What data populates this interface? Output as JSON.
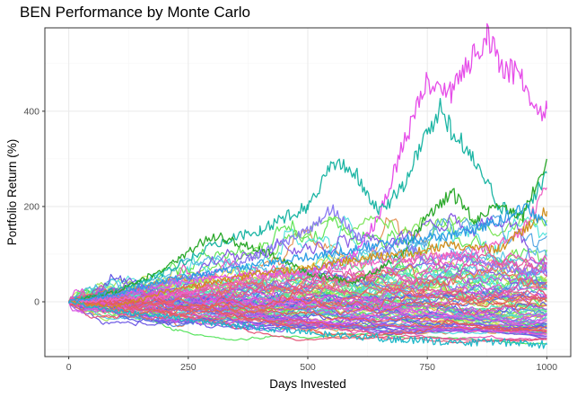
{
  "chart_data": {
    "type": "line",
    "title": "BEN Performance by Monte Carlo",
    "xlabel": "Days Invested",
    "ylabel": "Portfolio Return (%)",
    "xlim": [
      -50,
      1050
    ],
    "ylim": [
      -115,
      575
    ],
    "x_ticks": [
      0,
      250,
      500,
      750,
      1000
    ],
    "x_tick_labels": [
      "0",
      "250",
      "500",
      "750",
      "1000"
    ],
    "y_ticks": [
      0,
      200,
      400
    ],
    "y_tick_labels": [
      "0",
      "200",
      "400"
    ],
    "grid": true,
    "legend": "none",
    "n_simulations": 100,
    "days": 1000,
    "highlighted_series": [
      {
        "color": "#E64EE9",
        "points": [
          [
            0,
            0
          ],
          [
            100,
            15
          ],
          [
            200,
            35
          ],
          [
            300,
            50
          ],
          [
            400,
            60
          ],
          [
            500,
            60
          ],
          [
            600,
            100
          ],
          [
            650,
            180
          ],
          [
            700,
            330
          ],
          [
            750,
            460
          ],
          [
            800,
            440
          ],
          [
            850,
            520
          ],
          [
            875,
            560
          ],
          [
            900,
            500
          ],
          [
            950,
            470
          ],
          [
            975,
            400
          ],
          [
            1000,
            405
          ]
        ]
      },
      {
        "color": "#1CB5A4",
        "points": [
          [
            0,
            0
          ],
          [
            100,
            25
          ],
          [
            200,
            60
          ],
          [
            300,
            120
          ],
          [
            400,
            150
          ],
          [
            500,
            200
          ],
          [
            560,
            300
          ],
          [
            600,
            270
          ],
          [
            650,
            190
          ],
          [
            700,
            240
          ],
          [
            750,
            360
          ],
          [
            780,
            410
          ],
          [
            800,
            360
          ],
          [
            850,
            300
          ],
          [
            900,
            200
          ],
          [
            950,
            180
          ],
          [
            1000,
            270
          ]
        ]
      },
      {
        "color": "#2BA82B",
        "points": [
          [
            0,
            0
          ],
          [
            100,
            20
          ],
          [
            200,
            70
          ],
          [
            300,
            140
          ],
          [
            400,
            110
          ],
          [
            500,
            60
          ],
          [
            600,
            40
          ],
          [
            700,
            100
          ],
          [
            750,
            180
          ],
          [
            800,
            230
          ],
          [
            850,
            170
          ],
          [
            900,
            210
          ],
          [
            950,
            180
          ],
          [
            1000,
            300
          ]
        ]
      },
      {
        "color": "#8A7BF2",
        "points": [
          [
            0,
            0
          ],
          [
            100,
            10
          ],
          [
            200,
            40
          ],
          [
            300,
            60
          ],
          [
            400,
            100
          ],
          [
            500,
            150
          ],
          [
            550,
            200
          ],
          [
            600,
            140
          ],
          [
            650,
            100
          ],
          [
            700,
            130
          ],
          [
            750,
            80
          ],
          [
            800,
            100
          ],
          [
            900,
            70
          ],
          [
            1000,
            60
          ]
        ]
      },
      {
        "color": "#F066C6",
        "points": [
          [
            0,
            0
          ],
          [
            100,
            5
          ],
          [
            200,
            10
          ],
          [
            300,
            30
          ],
          [
            400,
            50
          ],
          [
            500,
            60
          ],
          [
            600,
            80
          ],
          [
            700,
            90
          ],
          [
            800,
            100
          ],
          [
            900,
            120
          ],
          [
            950,
            150
          ],
          [
            1000,
            240
          ]
        ]
      },
      {
        "color": "#D08F1F",
        "points": [
          [
            0,
            0
          ],
          [
            100,
            -10
          ],
          [
            200,
            20
          ],
          [
            300,
            40
          ],
          [
            400,
            60
          ],
          [
            500,
            70
          ],
          [
            600,
            90
          ],
          [
            700,
            100
          ],
          [
            800,
            120
          ],
          [
            900,
            110
          ],
          [
            1000,
            190
          ]
        ]
      },
      {
        "color": "#2C9DE5",
        "points": [
          [
            0,
            0
          ],
          [
            100,
            15
          ],
          [
            200,
            45
          ],
          [
            300,
            60
          ],
          [
            400,
            80
          ],
          [
            500,
            95
          ],
          [
            600,
            110
          ],
          [
            700,
            130
          ],
          [
            800,
            140
          ],
          [
            900,
            170
          ],
          [
            950,
            200
          ],
          [
            1000,
            160
          ]
        ]
      },
      {
        "color": "#1FB8C9",
        "points": [
          [
            0,
            0
          ],
          [
            100,
            -20
          ],
          [
            200,
            -30
          ],
          [
            300,
            -45
          ],
          [
            400,
            -55
          ],
          [
            500,
            -65
          ],
          [
            600,
            -72
          ],
          [
            700,
            -80
          ],
          [
            800,
            -85
          ],
          [
            900,
            -85
          ],
          [
            1000,
            -90
          ]
        ]
      }
    ]
  },
  "colors": {
    "background": "#ffffff",
    "panel_border": "#333333",
    "grid_major": "#ebebeb",
    "grid_minor": "#f5f5f5"
  }
}
